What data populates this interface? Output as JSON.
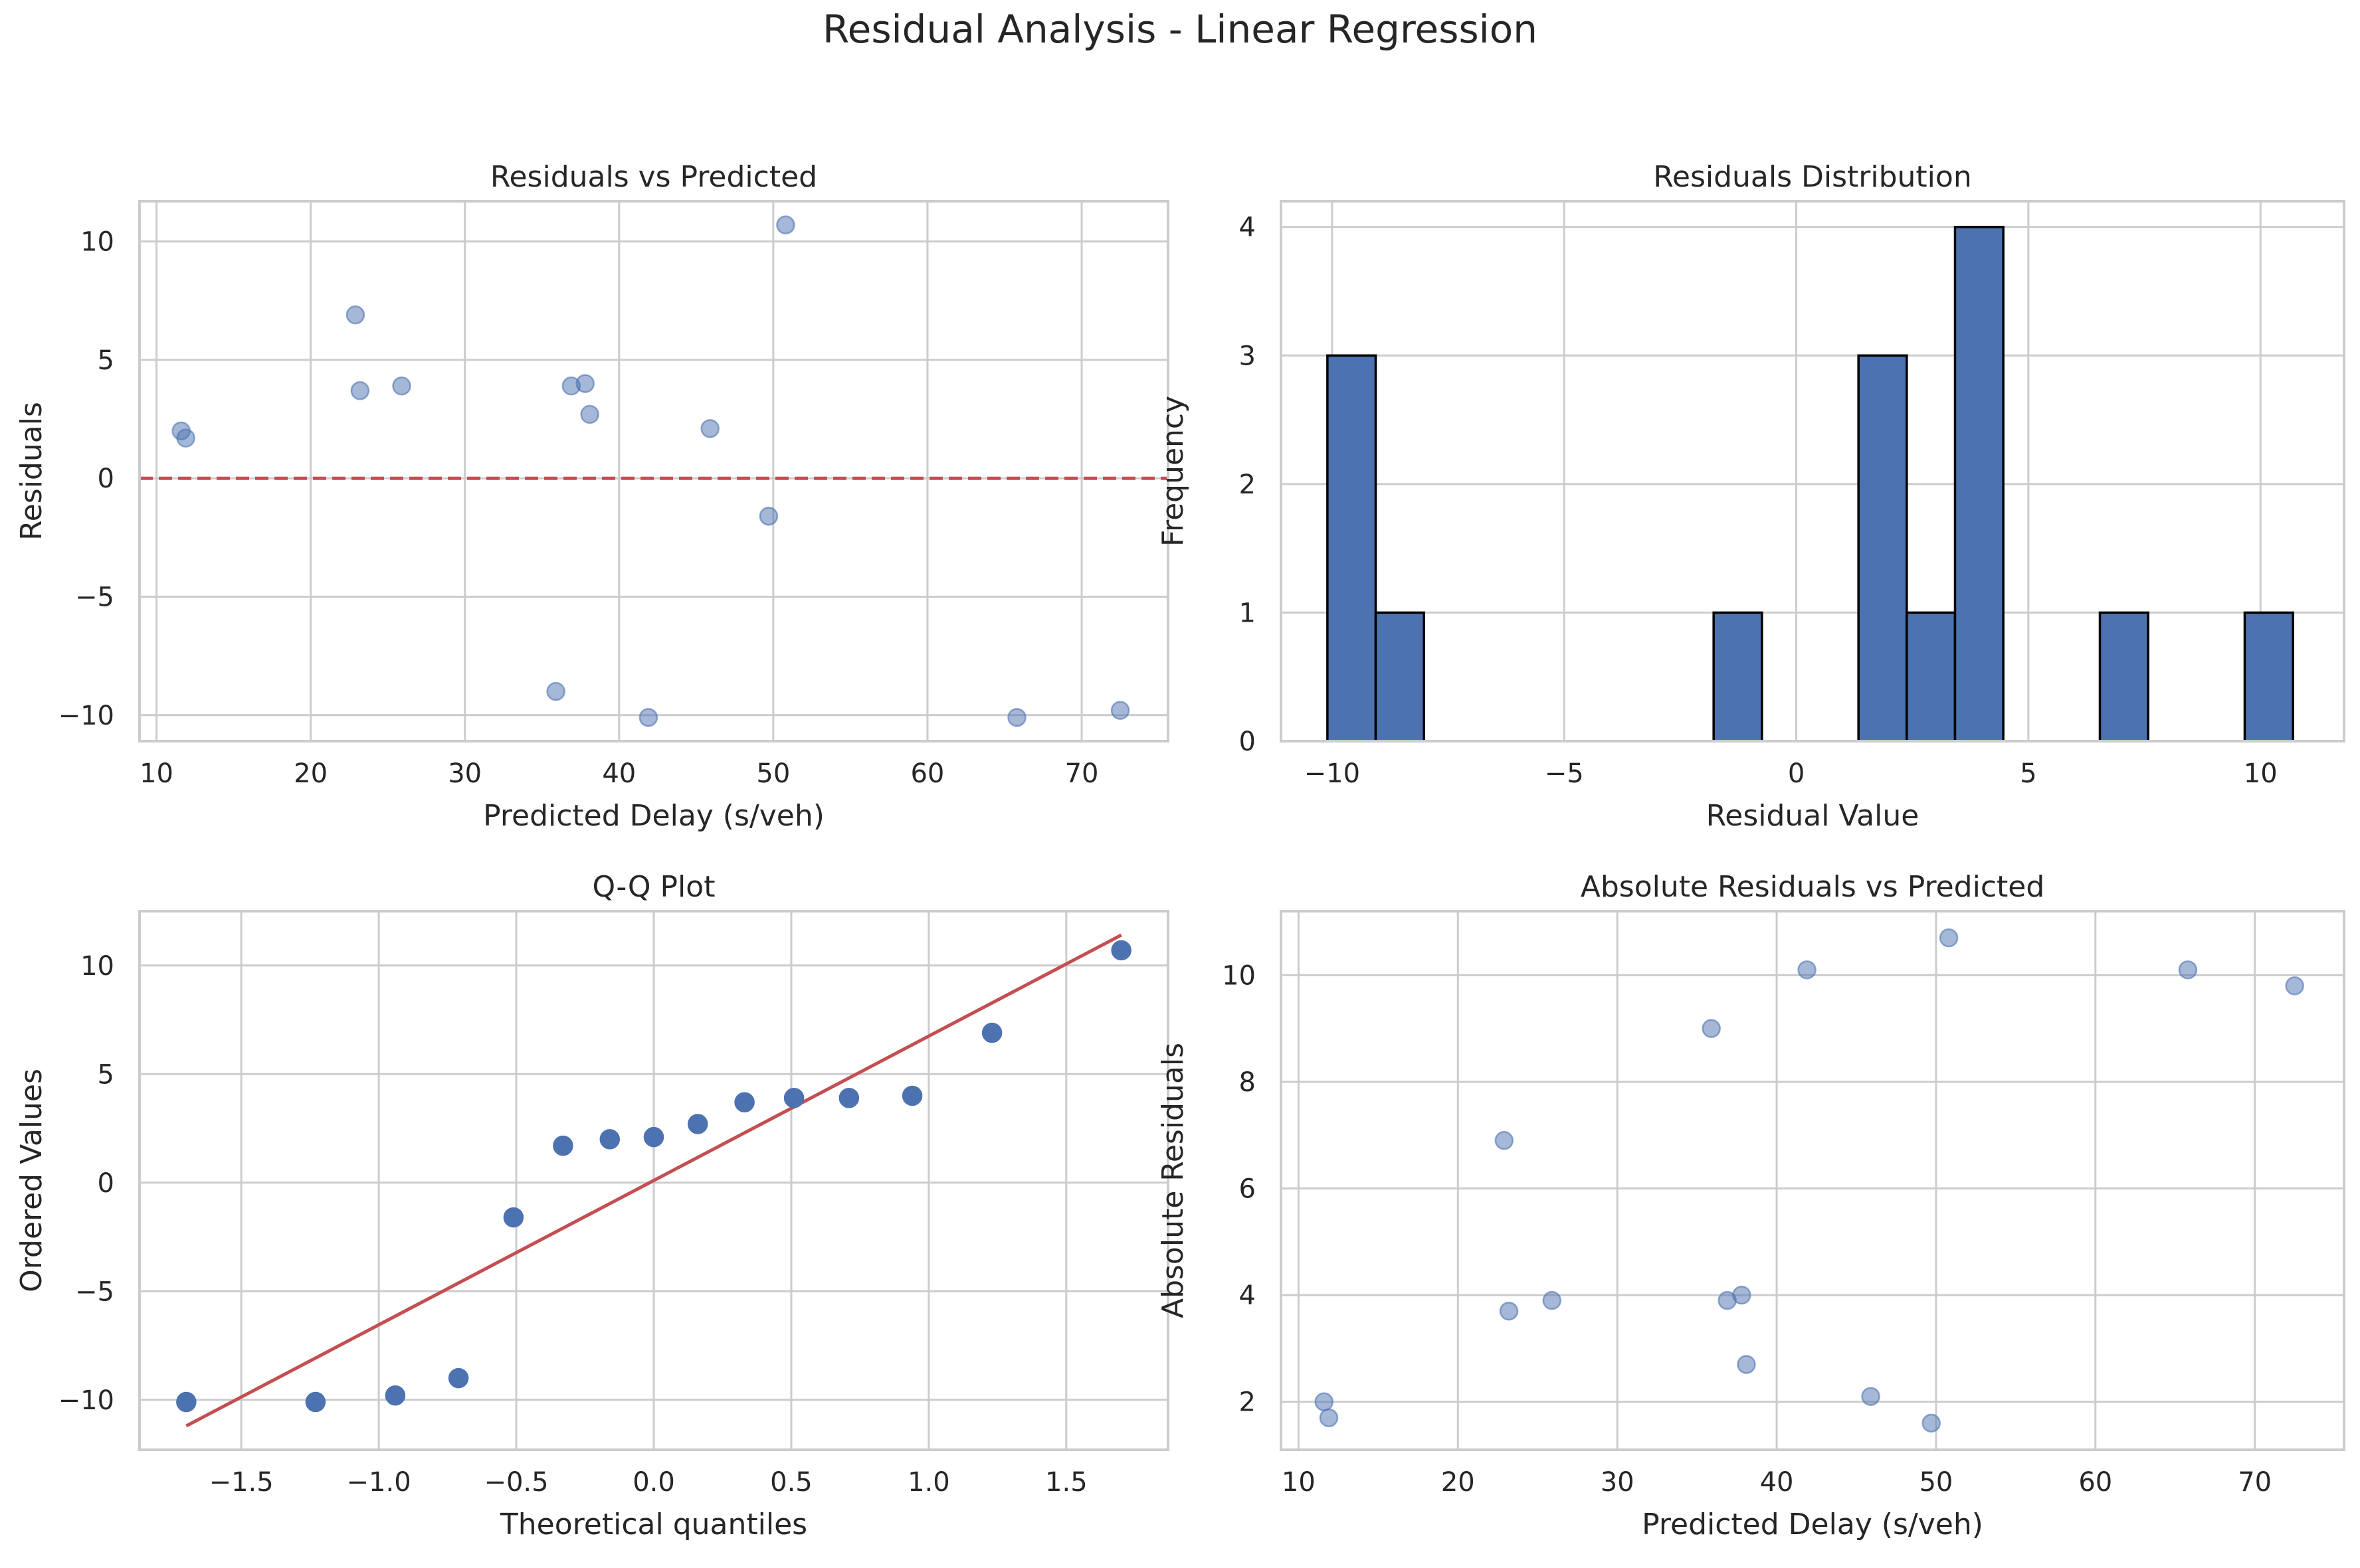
{
  "figure": {
    "suptitle": "Residual Analysis - Linear Regression"
  },
  "colors": {
    "point": "#4c72b0",
    "bar": "#4c72b0",
    "bar_edge": "#000000",
    "ref_line": "#c44e52",
    "grid": "#cccccc",
    "spine": "#cccccc"
  },
  "chart_data": [
    {
      "type": "scatter",
      "title": "Residuals vs Predicted",
      "xlabel": "Predicted Delay (s/veh)",
      "ylabel": "Residuals",
      "xlim": [
        8.9,
        75.6
      ],
      "ylim": [
        -11.1,
        11.7
      ],
      "xticks": [
        10,
        20,
        30,
        40,
        50,
        60,
        70
      ],
      "xtick_labels": [
        "10",
        "20",
        "30",
        "40",
        "50",
        "60",
        "70"
      ],
      "yticks": [
        -10,
        -5,
        0,
        5,
        10
      ],
      "ytick_labels": [
        "−10",
        "−5",
        "0",
        "5",
        "10"
      ],
      "grid": true,
      "reference_line": {
        "y": 0,
        "style": "dashed"
      },
      "points": [
        {
          "x": 11.6,
          "y": 2.0
        },
        {
          "x": 11.9,
          "y": 1.7
        },
        {
          "x": 22.9,
          "y": 6.9
        },
        {
          "x": 23.2,
          "y": 3.7
        },
        {
          "x": 25.9,
          "y": 3.9
        },
        {
          "x": 35.9,
          "y": -9.0
        },
        {
          "x": 36.9,
          "y": 3.9
        },
        {
          "x": 37.8,
          "y": 4.0
        },
        {
          "x": 38.1,
          "y": 2.7
        },
        {
          "x": 41.9,
          "y": -10.1
        },
        {
          "x": 45.9,
          "y": 2.1
        },
        {
          "x": 49.7,
          "y": -1.6
        },
        {
          "x": 50.8,
          "y": 10.7
        },
        {
          "x": 65.8,
          "y": -10.1
        },
        {
          "x": 72.5,
          "y": -9.8
        }
      ]
    },
    {
      "type": "bar",
      "title": "Residuals Distribution",
      "xlabel": "Residual Value",
      "ylabel": "Frequency",
      "xlim": [
        -11.1,
        11.8
      ],
      "ylim": [
        0,
        4.2
      ],
      "xticks": [
        -10,
        -5,
        0,
        5,
        10
      ],
      "xtick_labels": [
        "−10",
        "−5",
        "0",
        "5",
        "10"
      ],
      "yticks": [
        0,
        1,
        2,
        3,
        4
      ],
      "ytick_labels": [
        "0",
        "1",
        "2",
        "3",
        "4"
      ],
      "grid": true,
      "bins": [
        {
          "start": -10.1,
          "end": -9.06,
          "count": 3
        },
        {
          "start": -9.06,
          "end": -8.02,
          "count": 1
        },
        {
          "start": -1.78,
          "end": -0.74,
          "count": 1
        },
        {
          "start": 1.34,
          "end": 2.38,
          "count": 3
        },
        {
          "start": 2.38,
          "end": 3.42,
          "count": 1
        },
        {
          "start": 3.42,
          "end": 4.46,
          "count": 4
        },
        {
          "start": 6.54,
          "end": 7.58,
          "count": 1
        },
        {
          "start": 9.66,
          "end": 10.7,
          "count": 1
        }
      ]
    },
    {
      "type": "scatter",
      "title": "Q-Q Plot",
      "xlabel": "Theoretical quantiles",
      "ylabel": "Ordered Values",
      "xlim": [
        -1.87,
        1.87
      ],
      "ylim": [
        -12.3,
        12.5
      ],
      "xticks": [
        -1.5,
        -1.0,
        -0.5,
        0.0,
        0.5,
        1.0,
        1.5
      ],
      "xtick_labels": [
        "−1.5",
        "−1.0",
        "−0.5",
        "0.0",
        "0.5",
        "1.0",
        "1.5"
      ],
      "yticks": [
        -10,
        -5,
        0,
        5,
        10
      ],
      "ytick_labels": [
        "−10",
        "−5",
        "0",
        "5",
        "10"
      ],
      "grid": true,
      "fit_line": {
        "x": [
          -1.7,
          1.7
        ],
        "y": [
          -11.2,
          11.4
        ]
      },
      "points": [
        {
          "x": -1.7,
          "y": -10.1
        },
        {
          "x": -1.23,
          "y": -10.1
        },
        {
          "x": -0.94,
          "y": -9.8
        },
        {
          "x": -0.71,
          "y": -9.0
        },
        {
          "x": -0.51,
          "y": -1.6
        },
        {
          "x": -0.33,
          "y": 1.7
        },
        {
          "x": -0.16,
          "y": 2.0
        },
        {
          "x": 0.0,
          "y": 2.1
        },
        {
          "x": 0.16,
          "y": 2.7
        },
        {
          "x": 0.33,
          "y": 3.7
        },
        {
          "x": 0.51,
          "y": 3.9
        },
        {
          "x": 0.71,
          "y": 3.9
        },
        {
          "x": 0.94,
          "y": 4.0
        },
        {
          "x": 1.23,
          "y": 6.9
        },
        {
          "x": 1.7,
          "y": 10.7
        }
      ]
    },
    {
      "type": "scatter",
      "title": "Absolute Residuals vs Predicted",
      "xlabel": "Predicted Delay (s/veh)",
      "ylabel": "Absolute Residuals",
      "xlim": [
        8.9,
        75.6
      ],
      "ylim": [
        1.1,
        11.2
      ],
      "xticks": [
        10,
        20,
        30,
        40,
        50,
        60,
        70
      ],
      "xtick_labels": [
        "10",
        "20",
        "30",
        "40",
        "50",
        "60",
        "70"
      ],
      "yticks": [
        2,
        4,
        6,
        8,
        10
      ],
      "ytick_labels": [
        "2",
        "4",
        "6",
        "8",
        "10"
      ],
      "grid": true,
      "points": [
        {
          "x": 11.6,
          "y": 2.0
        },
        {
          "x": 11.9,
          "y": 1.7
        },
        {
          "x": 22.9,
          "y": 6.9
        },
        {
          "x": 23.2,
          "y": 3.7
        },
        {
          "x": 25.9,
          "y": 3.9
        },
        {
          "x": 35.9,
          "y": 9.0
        },
        {
          "x": 36.9,
          "y": 3.9
        },
        {
          "x": 37.8,
          "y": 4.0
        },
        {
          "x": 38.1,
          "y": 2.7
        },
        {
          "x": 41.9,
          "y": 10.1
        },
        {
          "x": 45.9,
          "y": 2.1
        },
        {
          "x": 49.7,
          "y": 1.6
        },
        {
          "x": 50.8,
          "y": 10.7
        },
        {
          "x": 65.8,
          "y": 10.1
        },
        {
          "x": 72.5,
          "y": 9.8
        }
      ]
    }
  ]
}
